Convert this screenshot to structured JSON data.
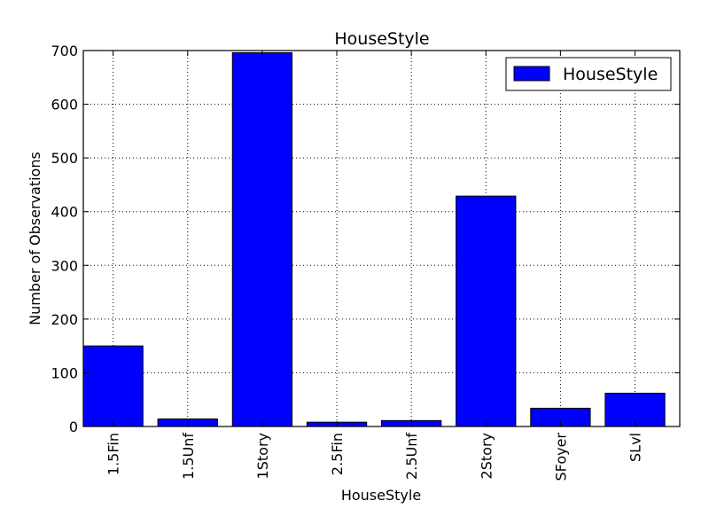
{
  "chart_data": {
    "type": "bar",
    "title": "HouseStyle",
    "xlabel": "HouseStyle",
    "ylabel": "Number of Observations",
    "categories": [
      "1.5Fin",
      "1.5Unf",
      "1Story",
      "2.5Fin",
      "2.5Unf",
      "2Story",
      "SFoyer",
      "SLvl"
    ],
    "series": [
      {
        "name": "HouseStyle",
        "values": [
          150,
          14,
          696,
          8,
          11,
          429,
          34,
          62
        ]
      }
    ],
    "ylim": [
      0,
      700
    ],
    "yticks": [
      0,
      100,
      200,
      300,
      400,
      500,
      600,
      700
    ],
    "grid": true,
    "legend_position": "top-right",
    "colors": {
      "bar": "#0000ff",
      "bar_edge": "#000000",
      "grid": "#000000"
    }
  }
}
